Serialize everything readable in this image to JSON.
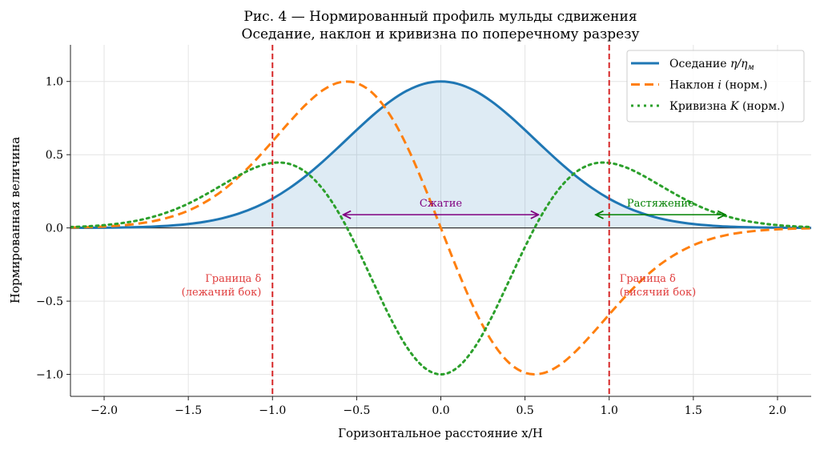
{
  "chart_data": {
    "type": "line",
    "title": "Рис. 4 — Нормированный профиль мульды сдвижения",
    "subtitle": "Оседание, наклон и кривизна по поперечному разрезу",
    "xlabel": "Горизонтальное расстояние x/H",
    "ylabel": "Нормированная величина",
    "xlim": [
      -2.2,
      2.2
    ],
    "ylim": [
      -1.15,
      1.25
    ],
    "grid": true,
    "legend_placement": "top-right",
    "x_ticks": [
      "−2.0",
      "−1.5",
      "−1.0",
      "−0.5",
      "0.0",
      "0.5",
      "1.0",
      "1.5",
      "2.0"
    ],
    "x_tick_values": [
      -2,
      -1.5,
      -1,
      -0.5,
      0,
      0.5,
      1,
      1.5,
      2
    ],
    "y_ticks": [
      "−1.0",
      "−0.5",
      "0.0",
      "0.5",
      "1.0"
    ],
    "y_tick_values": [
      -1,
      -0.5,
      0,
      0.5,
      1
    ],
    "x": [
      -2.2,
      -2.1,
      -2.0,
      -1.9,
      -1.8,
      -1.7,
      -1.6,
      -1.5,
      -1.4,
      -1.3,
      -1.2,
      -1.1,
      -1.0,
      -0.9,
      -0.8,
      -0.7,
      -0.6,
      -0.5,
      -0.4,
      -0.3,
      -0.2,
      -0.1,
      0,
      0.1,
      0.2,
      0.3,
      0.4,
      0.5,
      0.6,
      0.7,
      0.8,
      0.9,
      1.0,
      1.1,
      1.2,
      1.3,
      1.4,
      1.5,
      1.6,
      1.7,
      1.8,
      1.9,
      2.0,
      2.1,
      2.2
    ],
    "series": [
      {
        "name": "Оседание η/η_м",
        "legend_main": "Оседание ",
        "legend_math": "η/η",
        "legend_sub": "м",
        "color": "#1f77b4",
        "style": "solid",
        "fill": true,
        "values": [
          0.0004,
          0.0008,
          0.0016,
          0.003,
          0.0054,
          0.0095,
          0.0162,
          0.0266,
          0.0425,
          0.0656,
          0.0982,
          0.1423,
          0.1995,
          0.2711,
          0.3565,
          0.454,
          0.5598,
          0.6684,
          0.7727,
          0.865,
          0.9376,
          0.984,
          1,
          0.984,
          0.9376,
          0.865,
          0.7727,
          0.6684,
          0.5598,
          0.454,
          0.3565,
          0.2711,
          0.1995,
          0.1423,
          0.0982,
          0.0656,
          0.0425,
          0.0266,
          0.0162,
          0.0095,
          0.0054,
          0.003,
          0.0016,
          0.0008,
          0.0004
        ]
      },
      {
        "name": "Наклон i (норм.)",
        "legend_main": "Наклон ",
        "legend_math": "i",
        "legend_tail": " (норм.)",
        "color": "#ff7f0e",
        "style": "dashed",
        "values": [
          0.0026,
          0.005,
          0.0095,
          0.017,
          0.029,
          0.048,
          0.077,
          0.118,
          0.176,
          0.252,
          0.349,
          0.463,
          0.591,
          0.722,
          0.844,
          0.941,
          0.994,
          0.989,
          0.915,
          0.768,
          0.555,
          0.291,
          0,
          -0.291,
          -0.555,
          -0.768,
          -0.915,
          -0.989,
          -0.994,
          -0.941,
          -0.844,
          -0.722,
          -0.591,
          -0.463,
          -0.349,
          -0.252,
          -0.176,
          -0.118,
          -0.077,
          -0.048,
          -0.029,
          -0.017,
          -0.0095,
          -0.005,
          -0.0026
        ]
      },
      {
        "name": "Кривизна K (норм.)",
        "legend_main": "Кривизна ",
        "legend_math": "K",
        "legend_tail": " (норм.)",
        "color": "#2ca02c",
        "style": "dotted",
        "values": [
          0.006,
          0.011,
          0.019,
          0.032,
          0.051,
          0.079,
          0.117,
          0.166,
          0.226,
          0.292,
          0.358,
          0.413,
          0.444,
          0.437,
          0.379,
          0.263,
          0.09,
          -0.13,
          -0.374,
          -0.614,
          -0.817,
          -0.952,
          -1,
          -0.952,
          -0.817,
          -0.614,
          -0.374,
          -0.13,
          0.09,
          0.263,
          0.379,
          0.437,
          0.444,
          0.413,
          0.358,
          0.292,
          0.226,
          0.166,
          0.117,
          0.079,
          0.051,
          0.032,
          0.019,
          0.011,
          0.006
        ]
      }
    ],
    "vlines": [
      {
        "x": -1,
        "color": "#d62728",
        "label1": "Граница δ",
        "label2": "(лежачий бок)"
      },
      {
        "x": 1,
        "color": "#d62728",
        "label1": "Граница δ",
        "label2": "(висячий бок)"
      }
    ],
    "annotations": [
      {
        "text": "Сжатие",
        "x1": -0.58,
        "x2": 0.58,
        "y": 0.09,
        "color": "#800080"
      },
      {
        "text": "Растяжение",
        "x1": 0.92,
        "x2": 1.69,
        "y": 0.09,
        "color": "#008000"
      }
    ]
  }
}
